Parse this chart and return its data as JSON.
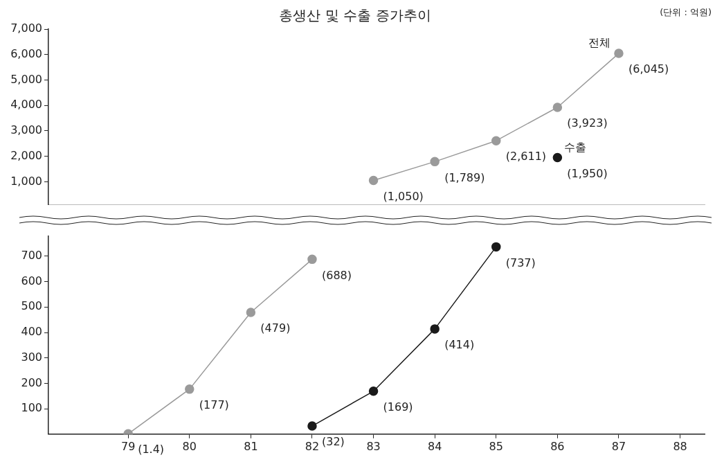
{
  "chart_data": [
    {
      "type": "line",
      "title": "총생산 및 수출 증가추이",
      "annotations": [
        "(단위 : 억원)"
      ],
      "xlim": [
        77.7,
        88.4
      ],
      "xticks": [
        79,
        80,
        81,
        82,
        83,
        84,
        85,
        86,
        87,
        88
      ],
      "ylim": [
        100,
        7000
      ],
      "yticks": [
        {
          "value": 1000,
          "label": "1,000"
        },
        {
          "value": 2000,
          "label": "2,000"
        },
        {
          "value": 3000,
          "label": "3,000"
        },
        {
          "value": 4000,
          "label": "4,000"
        },
        {
          "value": 5000,
          "label": "5,000"
        },
        {
          "value": 6000,
          "label": "6,000"
        },
        {
          "value": 7000,
          "label": "7,000"
        }
      ],
      "tick_labels": "y",
      "marker": "circle",
      "series": [
        {
          "name": "전체",
          "color": "#9a9a9a",
          "x": [
            83,
            84,
            85,
            86,
            87
          ],
          "values": [
            1050,
            1789,
            2611,
            3923,
            6045
          ],
          "value_labels": [
            "(1,050)",
            "(1,789)",
            "(2,611)",
            "(3,923)",
            "(6,045)"
          ]
        },
        {
          "name": "수출",
          "color": "#1a1a1a",
          "x": [
            86
          ],
          "values": [
            1950
          ],
          "value_labels": [
            "(1,950)"
          ]
        }
      ]
    },
    {
      "type": "line",
      "xlim": [
        77.7,
        88.4
      ],
      "xticks": [
        79,
        80,
        81,
        82,
        83,
        84,
        85,
        86,
        87,
        88
      ],
      "ylim": [
        0,
        780
      ],
      "yticks": [
        100,
        200,
        300,
        400,
        500,
        600,
        700
      ],
      "marker": "circle",
      "series": [
        {
          "color": "#9a9a9a",
          "x": [
            79,
            80,
            81,
            82
          ],
          "values": [
            1.4,
            177,
            479,
            688
          ],
          "value_labels": [
            "(1.4)",
            "(177)",
            "(479)",
            "(688)"
          ]
        },
        {
          "color": "#1a1a1a",
          "x": [
            82,
            83,
            84,
            85
          ],
          "values": [
            32,
            169,
            414,
            737
          ],
          "value_labels": [
            "(32)",
            "(169)",
            "(414)",
            "(737)"
          ]
        }
      ]
    }
  ]
}
